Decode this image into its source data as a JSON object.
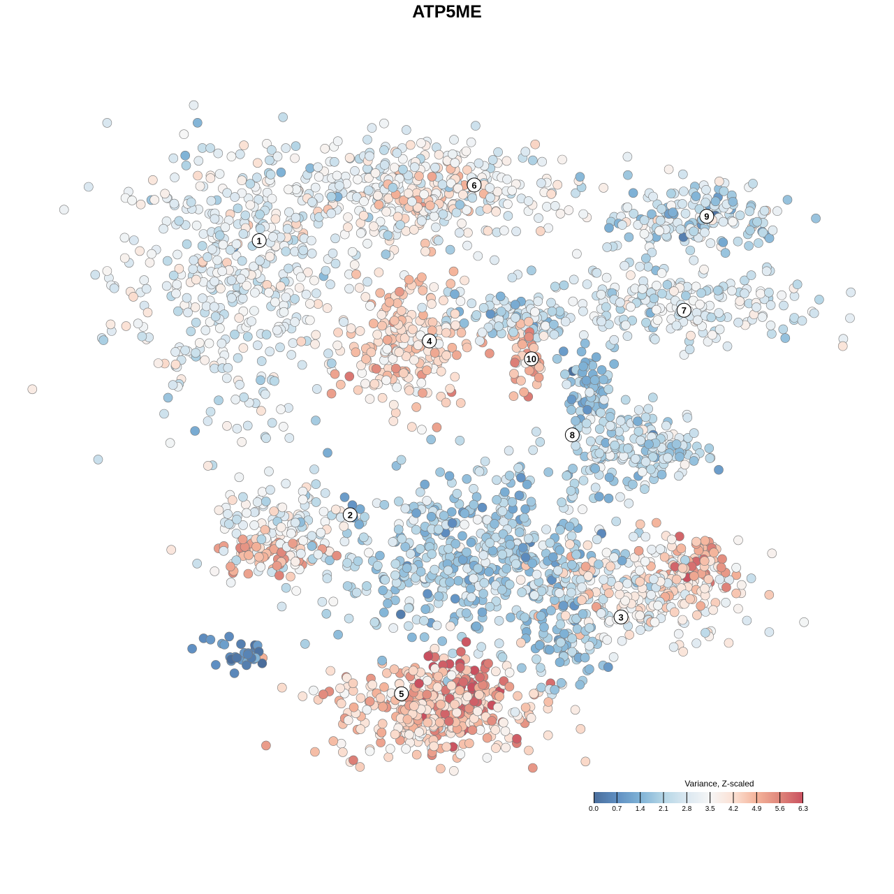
{
  "chart_data": {
    "type": "scatter",
    "title": "ATP5ME",
    "xlabel": "",
    "ylabel": "",
    "xlim": [
      -50,
      50
    ],
    "ylim": [
      -50,
      50
    ],
    "grid": false,
    "colorbar": {
      "title": "Variance, Z-scaled",
      "ticks": [
        "0.0",
        "0.7",
        "1.4",
        "2.1",
        "2.8",
        "3.5",
        "4.2",
        "4.9",
        "5.6",
        "6.3"
      ],
      "range": [
        0,
        6.3
      ],
      "colors": [
        "#4a6d9b",
        "#5f8fc2",
        "#7fb2d6",
        "#b5d6e6",
        "#dbe8f1",
        "#f6f6f6",
        "#fbe1d4",
        "#f4b39a",
        "#df857a",
        "#c9505f"
      ],
      "placement": "bottom-right"
    },
    "point_groups": [
      {
        "cluster": "1",
        "x": -36,
        "y": 26,
        "sx": 9,
        "sy": 11,
        "n": 420,
        "mean": 3.0,
        "sd": 0.6
      },
      {
        "cluster": "6",
        "x": -9,
        "y": 40,
        "sx": 13,
        "sy": 4.5,
        "n": 350,
        "mean": 3.1,
        "sd": 0.6
      },
      {
        "cluster": "6",
        "x": -6,
        "y": 39,
        "sx": 4,
        "sy": 3,
        "n": 80,
        "mean": 4.3,
        "sd": 0.4
      },
      {
        "cluster": "4",
        "x": -9,
        "y": 16,
        "sx": 4.5,
        "sy": 5,
        "n": 220,
        "mean": 4.2,
        "sd": 0.6
      },
      {
        "cluster": "10",
        "x": 10,
        "y": 14,
        "sx": 1.5,
        "sy": 2.5,
        "n": 45,
        "mean": 4.8,
        "sd": 0.5
      },
      {
        "cluster": "4",
        "x": 8,
        "y": 20,
        "sx": 5,
        "sy": 2,
        "n": 80,
        "mean": 2.4,
        "sd": 0.6
      },
      {
        "cluster": "9",
        "x": 35,
        "y": 36,
        "sx": 7,
        "sy": 3,
        "n": 160,
        "mean": 2.5,
        "sd": 0.7
      },
      {
        "cluster": "7",
        "x": 32,
        "y": 22,
        "sx": 11,
        "sy": 3,
        "n": 220,
        "mean": 2.8,
        "sd": 0.6
      },
      {
        "cluster": "8",
        "x": 27,
        "y": 0,
        "sx": 5,
        "sy": 3,
        "n": 160,
        "mean": 2.4,
        "sd": 0.6
      },
      {
        "cluster": "8",
        "x": 19,
        "y": 10,
        "sx": 2,
        "sy": 3,
        "n": 60,
        "mean": 1.6,
        "sd": 0.5
      },
      {
        "cluster": "2",
        "x": -28,
        "y": -13,
        "sx": 6,
        "sy": 3.5,
        "n": 120,
        "mean": 3.2,
        "sd": 0.6
      },
      {
        "cluster": "2",
        "x": -30,
        "y": -17,
        "sx": 4,
        "sy": 1.8,
        "n": 50,
        "mean": 5.0,
        "sd": 0.5
      },
      {
        "cluster": "central",
        "x": 2,
        "y": -17,
        "sx": 11,
        "sy": 7,
        "n": 520,
        "mean": 2.0,
        "sd": 0.6
      },
      {
        "cluster": "3",
        "x": 28,
        "y": -22,
        "sx": 8,
        "sy": 4,
        "n": 250,
        "mean": 3.6,
        "sd": 0.7
      },
      {
        "cluster": "3",
        "x": 34,
        "y": -19,
        "sx": 3,
        "sy": 2.5,
        "n": 60,
        "mean": 5.0,
        "sd": 0.5
      },
      {
        "cluster": "5",
        "x": -4,
        "y": -41,
        "sx": 8,
        "sy": 3.8,
        "n": 350,
        "mean": 4.4,
        "sd": 0.6
      },
      {
        "cluster": "5",
        "x": -1,
        "y": -38,
        "sx": 4,
        "sy": 3,
        "n": 80,
        "mean": 6.0,
        "sd": 0.3
      },
      {
        "cluster": "left",
        "x": -35,
        "y": -32,
        "sx": 3,
        "sy": 1.5,
        "n": 30,
        "mean": 0.6,
        "sd": 0.4
      },
      {
        "cluster": "3",
        "x": 15,
        "y": -32,
        "sx": 3,
        "sy": 3,
        "n": 60,
        "mean": 1.8,
        "sd": 0.5
      }
    ],
    "cluster_labels": [
      {
        "label": "1",
        "x": -31.6,
        "y": 32.3
      },
      {
        "label": "2",
        "x": -17.6,
        "y": -10.6
      },
      {
        "label": "3",
        "x": 24.1,
        "y": -26.6
      },
      {
        "label": "4",
        "x": -5.4,
        "y": 16.6
      },
      {
        "label": "5",
        "x": -9.7,
        "y": -38.6
      },
      {
        "label": "6",
        "x": 1.5,
        "y": 41.0
      },
      {
        "label": "7",
        "x": 33.8,
        "y": 21.4
      },
      {
        "label": "8",
        "x": 16.6,
        "y": 1.9
      },
      {
        "label": "9",
        "x": 37.3,
        "y": 36.1
      },
      {
        "label": "10",
        "x": 10.3,
        "y": 13.8
      }
    ]
  }
}
